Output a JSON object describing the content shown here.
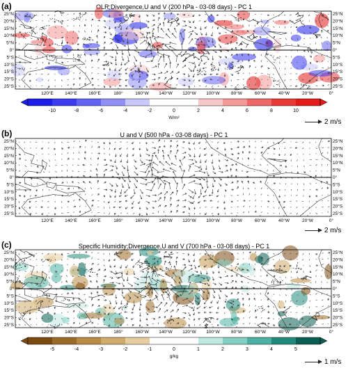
{
  "panels": [
    {
      "label": "(a)",
      "title": "OLR;Divergence,U and V (200 hPa - 03-08 days) - PC 1",
      "ref_vector": "2 m/s",
      "colorbar": {
        "ticks": [
          "-10",
          "-8",
          "-6",
          "-4",
          "-2",
          "0",
          "2",
          "4",
          "6",
          "8",
          "10"
        ],
        "unit": "W/m²",
        "colors": [
          "#1d1de8",
          "#3b3bf0",
          "#6464f4",
          "#9090f7",
          "#c8c8fb",
          "#ffffff",
          "#ffffff",
          "#f8c8c8",
          "#f49898",
          "#ef6868",
          "#e83838",
          "#e21a1a"
        ]
      }
    },
    {
      "label": "(b)",
      "title": "U and V (500 hPa - 03-08 days) - PC 1",
      "ref_vector": "2 m/s"
    },
    {
      "label": "(c)",
      "title": "Specific Humidity;Divergence,U and V (700 hPa - 03-08 days) - PC 1",
      "ref_vector": "1 m/s",
      "colorbar": {
        "ticks": [
          "-5",
          "-4",
          "-3",
          "-2",
          "-1",
          "0",
          "1",
          "2",
          "3",
          "4",
          "5"
        ],
        "unit": "g/kg",
        "colors": [
          "#7a4a10",
          "#9a6a26",
          "#b88a44",
          "#d0ac6c",
          "#e6cea0",
          "#ffffff",
          "#ffffff",
          "#bfe8e0",
          "#84d0c4",
          "#4cb0a2",
          "#208a7c",
          "#0a5e52"
        ]
      }
    }
  ],
  "lat_labels": [
    "25°N",
    "20°N",
    "15°N",
    "10°N",
    "5°N",
    "0°",
    "5°S",
    "10°S",
    "15°S",
    "20°S",
    "25°S"
  ],
  "lon_labels": [
    "120°E",
    "140°E",
    "160°E",
    "180°",
    "160°W",
    "140°W",
    "120°W",
    "100°W",
    "80°W",
    "60°W",
    "40°W",
    "20°W",
    "0°"
  ]
}
